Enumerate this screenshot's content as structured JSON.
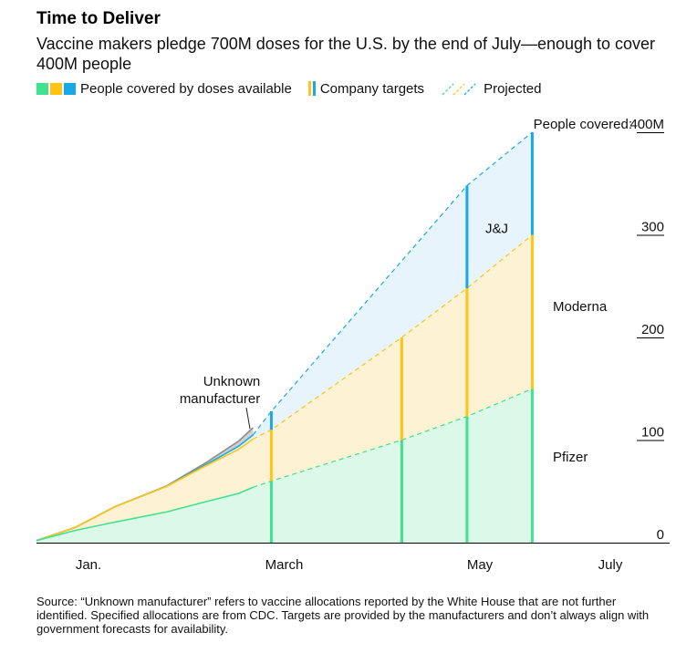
{
  "header": {
    "title": "Time to Deliver",
    "subtitle": "Vaccine makers pledge 700M doses for the U.S. by the end of July—enough to cover 400M people"
  },
  "legend": {
    "available_label": "People covered by doses available",
    "targets_label": "Company targets",
    "projected_label": "Projected"
  },
  "colors": {
    "pfizer": "#3ee28f",
    "moderna": "#ffc414",
    "jj": "#17a9e6",
    "unknown": "#8c8c8c",
    "pfizer_fill": "#dcf8e8",
    "moderna_fill": "#fdf2d3",
    "jj_fill": "#e7f4fc",
    "unknown_fill": "#d0d0d0",
    "axis": "#000000"
  },
  "chart_data": {
    "type": "area",
    "unit": "million people covered",
    "x_tick_labels": [
      "Jan.",
      "March",
      "May",
      "July"
    ],
    "y_ticks": [
      0,
      100,
      200,
      300,
      400
    ],
    "y_tick_labels": [
      "0",
      "100",
      "200",
      "300",
      "400M"
    ],
    "top_label": "People covered:",
    "ylim": [
      0,
      400
    ],
    "series_labels": {
      "pfizer": "Pfizer",
      "moderna": "Moderna",
      "jj": "J&J",
      "unknown": "Unknown manufacturer"
    },
    "actual": {
      "months": [
        0.0,
        0.6,
        1.2,
        2.0,
        2.6,
        3.1,
        3.32
      ],
      "pfizer": [
        2,
        12,
        20,
        30,
        40,
        48,
        54
      ],
      "moderna": [
        0,
        3,
        15,
        25,
        35,
        43,
        47
      ],
      "jj": [
        0,
        0,
        0,
        0,
        1,
        3,
        4
      ],
      "unknown": [
        0,
        0,
        0,
        0.5,
        2,
        5,
        7
      ]
    },
    "targets": [
      {
        "month": 3.6,
        "pfizer": 60,
        "moderna": 50,
        "jj": 18
      },
      {
        "month": 5.6,
        "pfizer": 100,
        "moderna": 100,
        "jj": 0
      },
      {
        "month": 6.6,
        "pfizer": 123,
        "moderna": 125,
        "jj": 100
      },
      {
        "month": 7.6,
        "pfizer": 150,
        "moderna": 150,
        "jj": 100
      }
    ]
  },
  "footer": {
    "source": "Source: “Unknown manufacturer” refers to vaccine allocations reported by the White House that are not further identified. Specified allocations are from CDC. Targets are provided by the manufacturers and don’t always align with government forecasts for availability."
  }
}
